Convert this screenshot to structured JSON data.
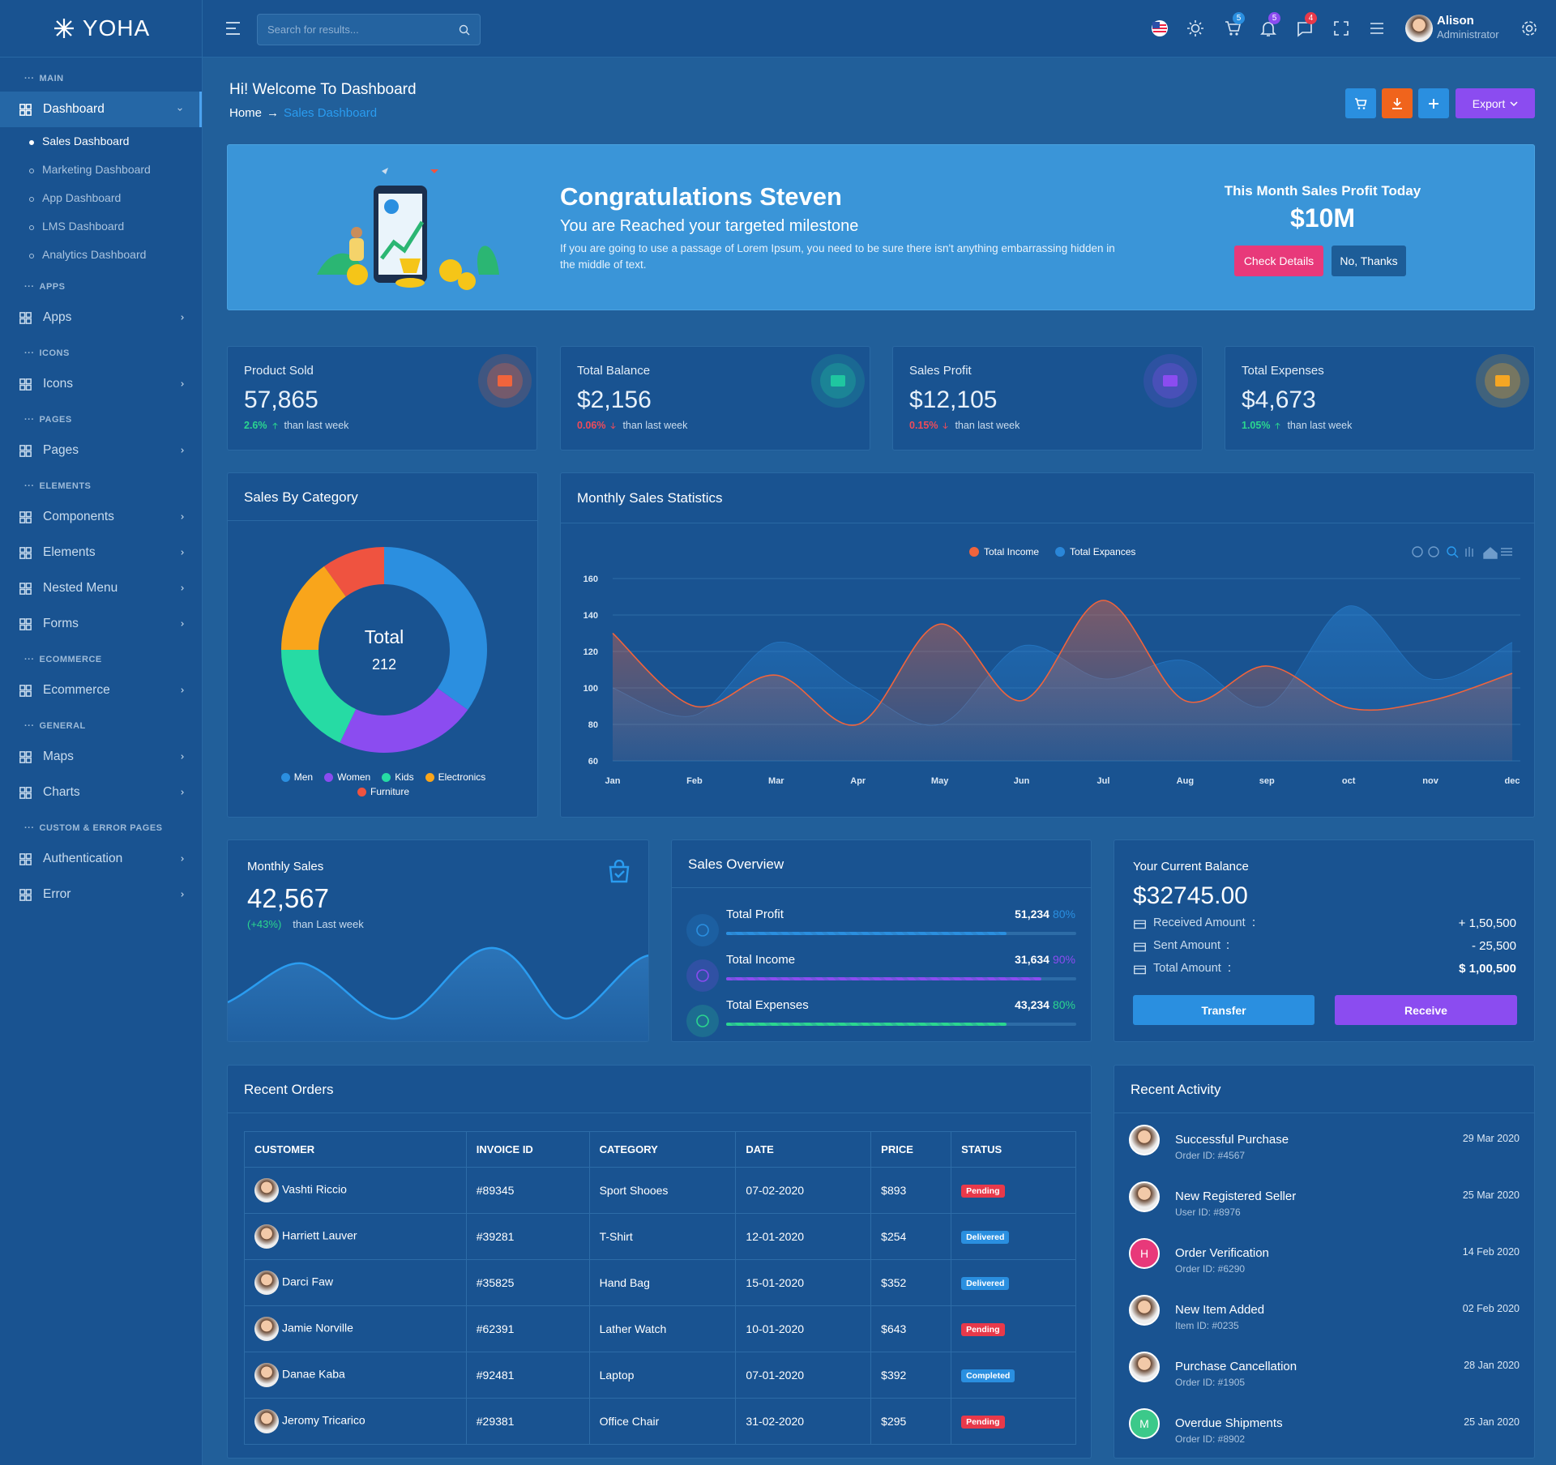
{
  "logo": "YOHA",
  "search_placeholder": "Search for results...",
  "header": {
    "badges": [
      5,
      5,
      4
    ],
    "user_name": "Alison",
    "user_role": "Administrator"
  },
  "sidebar": [
    {
      "section": "MAIN",
      "items": [
        {
          "label": "Dashboard",
          "active": true,
          "active_sub": 0,
          "sub": [
            "Sales Dashboard",
            "Marketing Dashboard",
            "App Dashboard",
            "LMS Dashboard",
            "Analytics Dashboard"
          ]
        }
      ]
    },
    {
      "section": "APPS",
      "items": [
        {
          "label": "Apps"
        }
      ]
    },
    {
      "section": "ICONS",
      "items": [
        {
          "label": "Icons"
        }
      ]
    },
    {
      "section": "PAGES",
      "items": [
        {
          "label": "Pages"
        }
      ]
    },
    {
      "section": "ELEMENTS",
      "items": [
        {
          "label": "Components"
        },
        {
          "label": "Elements"
        },
        {
          "label": "Nested Menu"
        },
        {
          "label": "Forms"
        }
      ]
    },
    {
      "section": "ECOMMERCE",
      "items": [
        {
          "label": "Ecommerce"
        }
      ]
    },
    {
      "section": "GENERAL",
      "items": [
        {
          "label": "Maps"
        },
        {
          "label": "Charts"
        }
      ]
    },
    {
      "section": "CUSTOM & ERROR PAGES",
      "items": [
        {
          "label": "Authentication"
        },
        {
          "label": "Error"
        }
      ]
    }
  ],
  "page": {
    "title": "Hi! Welcome To Dashboard",
    "breadcrumb": [
      "Home",
      "Sales Dashboard"
    ],
    "breadcrumb_separator": "→",
    "export": "Export"
  },
  "banner": {
    "title": "Congratulations Steven",
    "subtitle": "You are Reached your targeted milestone",
    "text": "If you are going to use a passage of Lorem Ipsum, you need to be sure there isn't anything embarrassing hidden in the middle of text.",
    "profit_label": "This Month Sales Profit Today",
    "profit": "$10M",
    "buttons": [
      "Check Details",
      "No, Thanks"
    ]
  },
  "stats": [
    {
      "label": "Product Sold",
      "value": "57,865",
      "change": "2.6%",
      "trend": "up",
      "note": "than last week",
      "color": "#f0643c"
    },
    {
      "label": "Total Balance",
      "value": "$2,156",
      "change": "0.06%",
      "trend": "down",
      "note": "than last week",
      "color": "#1fc6a0"
    },
    {
      "label": "Sales Profit",
      "value": "$12,105",
      "change": "0.15%",
      "trend": "down",
      "note": "than last week",
      "color": "#8b4cf0"
    },
    {
      "label": "Total Expenses",
      "value": "$4,673",
      "change": "1.05%",
      "trend": "up",
      "note": "than last week",
      "color": "#f5a623"
    }
  ],
  "sales_by_category": {
    "type": "pie",
    "title": "Sales By Category",
    "center_label": "Total",
    "center_value": 212,
    "categories": [
      "Men",
      "Women",
      "Kids",
      "Electronics",
      "Furniture"
    ],
    "values": [
      74,
      47,
      38,
      32,
      21
    ],
    "colors": [
      "#2b8fe0",
      "#8b4cf0",
      "#26dba4",
      "#f9a51b",
      "#ef5340"
    ]
  },
  "monthly_sales_statistics": {
    "type": "area",
    "title": "Monthly Sales Statistics",
    "categories": [
      "Jan",
      "Feb",
      "Mar",
      "Apr",
      "May",
      "Jun",
      "Jul",
      "Aug",
      "sep",
      "oct",
      "nov",
      "dec"
    ],
    "series": [
      {
        "name": "Total Income",
        "color": "#f0643c",
        "values": [
          130,
          90,
          107,
          80,
          135,
          93,
          148,
          93,
          112,
          89,
          93,
          108
        ]
      },
      {
        "name": "Total Expances",
        "color": "#2a86d8",
        "values": [
          100,
          85,
          125,
          100,
          80,
          123,
          105,
          115,
          90,
          145,
          105,
          125
        ]
      }
    ],
    "ylim": [
      60,
      160
    ],
    "yticks": [
      60,
      80,
      100,
      120,
      140,
      160
    ],
    "grid": true
  },
  "monthly_sales": {
    "title": "Monthly Sales",
    "value": "42,567",
    "change": "(+43%)",
    "note": "than Last week"
  },
  "sales_overview": {
    "title": "Sales Overview",
    "items": [
      {
        "label": "Total Profit",
        "value": "51,234",
        "progress": 80,
        "progress_label": "80%",
        "color": "#2a8fe0"
      },
      {
        "label": "Total Income",
        "value": "31,634",
        "progress": 90,
        "progress_label": "90%",
        "color": "#8b4cf0"
      },
      {
        "label": "Total Expenses",
        "value": "43,234",
        "progress": 80,
        "progress_label": "80%",
        "color": "#2bd68f"
      }
    ]
  },
  "balance": {
    "title": "Your Current Balance",
    "amount": "$32745.00",
    "separator": ":",
    "rows": [
      {
        "label": "Received Amount",
        "value": "+ 1,50,500"
      },
      {
        "label": "Sent Amount",
        "value": "- 25,500"
      },
      {
        "label": "Total Amount",
        "value": "$ 1,00,500"
      }
    ],
    "buttons": [
      "Transfer",
      "Receive"
    ]
  },
  "recent_orders": {
    "title": "Recent Orders",
    "columns": [
      "CUSTOMER",
      "INVOICE ID",
      "CATEGORY",
      "DATE",
      "PRICE",
      "STATUS"
    ],
    "rows": [
      [
        "Vashti Riccio",
        "#89345",
        "Sport Shooes",
        "07-02-2020",
        "$893",
        "Pending"
      ],
      [
        "Harriett Lauver",
        "#39281",
        "T-Shirt",
        "12-01-2020",
        "$254",
        "Delivered"
      ],
      [
        "Darci Faw",
        "#35825",
        "Hand Bag",
        "15-01-2020",
        "$352",
        "Delivered"
      ],
      [
        "Jamie Norville",
        "#62391",
        "Lather Watch",
        "10-01-2020",
        "$643",
        "Pending"
      ],
      [
        "Danae Kaba",
        "#92481",
        "Laptop",
        "07-01-2020",
        "$392",
        "Completed"
      ],
      [
        "Jeromy Tricarico",
        "#29381",
        "Office Chair",
        "31-02-2020",
        "$295",
        "Pending"
      ]
    ],
    "status_colors": [
      "#e8394a",
      "#2a8fe0",
      "#2a8fe0",
      "#e8394a",
      "#2a8fe0",
      "#e8394a"
    ]
  },
  "recent_activity": {
    "title": "Recent Activity",
    "items": [
      {
        "title": "Successful Purchase",
        "detail": "Order ID: #4567",
        "date": "29 Mar 2020"
      },
      {
        "title": "New Registered Seller",
        "detail": "User ID: #8976",
        "date": "25 Mar 2020"
      },
      {
        "title": "Order Verification",
        "detail": "Order ID: #6290",
        "date": "14 Feb 2020",
        "initial": "H",
        "color": "#e8397a"
      },
      {
        "title": "New Item Added",
        "detail": "Item ID: #0235",
        "date": "02 Feb 2020"
      },
      {
        "title": "Purchase Cancellation",
        "detail": "Order ID: #1905",
        "date": "28 Jan 2020"
      },
      {
        "title": "Overdue Shipments",
        "detail": "Order ID: #8902",
        "date": "25 Jan 2020",
        "initial": "M",
        "color": "#3cc98a"
      }
    ]
  }
}
